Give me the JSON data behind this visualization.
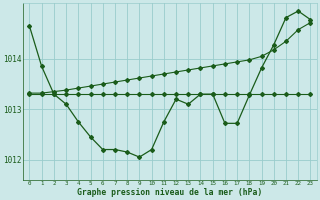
{
  "title": "Graphe pression niveau de la mer (hPa)",
  "background_color": "#cce8e8",
  "grid_color": "#99cccc",
  "line_color": "#1a5c1a",
  "x_labels": [
    "0",
    "1",
    "2",
    "3",
    "4",
    "5",
    "6",
    "7",
    "8",
    "9",
    "10",
    "11",
    "12",
    "13",
    "14",
    "15",
    "16",
    "17",
    "18",
    "19",
    "20",
    "21",
    "22",
    "23"
  ],
  "y_ticks": [
    1012,
    1013,
    1014
  ],
  "ylim": [
    1011.6,
    1015.1
  ],
  "series1": [
    1014.65,
    1013.85,
    1013.3,
    1013.1,
    1012.75,
    1012.45,
    1012.2,
    1012.2,
    1012.15,
    1012.05,
    1012.2,
    1012.75,
    1013.2,
    1013.1,
    1013.3,
    1013.3,
    1012.72,
    1012.72,
    1013.28,
    1013.82,
    1014.28,
    1014.82,
    1014.95,
    1014.78
  ],
  "series2": [
    1013.32,
    1013.32,
    1013.35,
    1013.38,
    1013.42,
    1013.46,
    1013.5,
    1013.54,
    1013.58,
    1013.62,
    1013.66,
    1013.7,
    1013.74,
    1013.78,
    1013.82,
    1013.86,
    1013.9,
    1013.94,
    1013.98,
    1014.05,
    1014.18,
    1014.35,
    1014.58,
    1014.72
  ],
  "series3": [
    1013.3,
    1013.3,
    1013.3,
    1013.3,
    1013.3,
    1013.3,
    1013.3,
    1013.3,
    1013.3,
    1013.3,
    1013.3,
    1013.3,
    1013.3,
    1013.3,
    1013.3,
    1013.3,
    1013.3,
    1013.3,
    1013.3,
    1013.3,
    1013.3,
    1013.3,
    1013.3,
    1013.3
  ],
  "figwidth": 3.2,
  "figheight": 2.0,
  "dpi": 100
}
